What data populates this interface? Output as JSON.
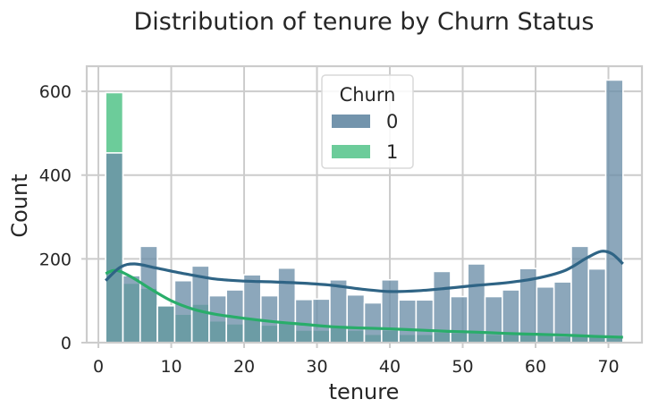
{
  "chart_data": {
    "type": "bar",
    "title": "Distribution of tenure by Churn Status",
    "xlabel": "tenure",
    "ylabel": "Count",
    "xlim": [
      -1.6,
      74.6
    ],
    "ylim": [
      0,
      660
    ],
    "xticks": [
      0,
      10,
      20,
      30,
      40,
      50,
      60,
      70
    ],
    "yticks": [
      0,
      200,
      400,
      600
    ],
    "grid": true,
    "legend": {
      "title": "Churn",
      "placement": "upper-center"
    },
    "bin_edges": [
      1,
      3.3667,
      5.7333,
      8.1,
      10.4667,
      12.8333,
      15.2,
      17.5667,
      19.9333,
      22.3,
      24.6667,
      27.0333,
      29.4,
      31.7667,
      34.1333,
      36.5,
      38.8667,
      41.2333,
      43.6,
      45.9667,
      48.3333,
      50.7,
      53.0667,
      55.4333,
      57.8,
      60.1667,
      62.5333,
      64.9,
      67.2667,
      69.6333,
      72
    ],
    "series": [
      {
        "name": "0",
        "color": "#6c8ea8",
        "values": [
          453,
          160,
          230,
          88,
          148,
          183,
          112,
          126,
          162,
          112,
          178,
          103,
          104,
          150,
          114,
          95,
          150,
          102,
          102,
          170,
          110,
          188,
          110,
          126,
          177,
          133,
          145,
          230,
          176,
          627
        ],
        "kde": [
          [
            1,
            148
          ],
          [
            3,
            180
          ],
          [
            5,
            188
          ],
          [
            8,
            178
          ],
          [
            12,
            164
          ],
          [
            16,
            152
          ],
          [
            20,
            147
          ],
          [
            24,
            145
          ],
          [
            28,
            142
          ],
          [
            32,
            137
          ],
          [
            36,
            128
          ],
          [
            40,
            122
          ],
          [
            44,
            124
          ],
          [
            48,
            130
          ],
          [
            52,
            137
          ],
          [
            56,
            143
          ],
          [
            60,
            153
          ],
          [
            64,
            172
          ],
          [
            67,
            202
          ],
          [
            69,
            218
          ],
          [
            70.5,
            212
          ],
          [
            72,
            188
          ]
        ]
      },
      {
        "name": "1",
        "color": "#6ccc9a",
        "values": [
          597,
          142,
          130,
          88,
          68,
          92,
          52,
          45,
          58,
          42,
          49,
          30,
          30,
          40,
          30,
          20,
          30,
          20,
          20,
          25,
          24,
          24,
          20,
          20,
          20,
          20,
          15,
          20,
          15,
          12
        ],
        "kde": [
          [
            1,
            165
          ],
          [
            2,
            172
          ],
          [
            3,
            170
          ],
          [
            5,
            152
          ],
          [
            7,
            130
          ],
          [
            10,
            100
          ],
          [
            13,
            80
          ],
          [
            16,
            68
          ],
          [
            20,
            58
          ],
          [
            24,
            50
          ],
          [
            28,
            44
          ],
          [
            32,
            38
          ],
          [
            36,
            35
          ],
          [
            40,
            33
          ],
          [
            44,
            30
          ],
          [
            48,
            27
          ],
          [
            52,
            25
          ],
          [
            56,
            22
          ],
          [
            60,
            20
          ],
          [
            64,
            18
          ],
          [
            68,
            15
          ],
          [
            72,
            13
          ]
        ]
      }
    ],
    "kde_colors": {
      "0": "#2f6485",
      "1": "#29ad6a"
    },
    "overlap_color": "#3f8190"
  }
}
